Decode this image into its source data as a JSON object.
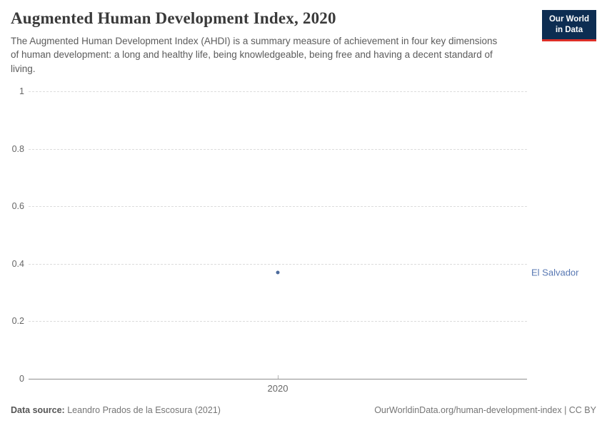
{
  "header": {
    "title": "Augmented Human Development Index, 2020",
    "subtitle": "The Augmented Human Development Index (AHDI) is a summary measure of achievement in four key dimensions of human development: a long and healthy life, being knowledgeable, being free and having a decent standard of living.",
    "logo": {
      "line1": "Our World",
      "line2": "in Data",
      "bg_color": "#0d2d52",
      "accent_color": "#dc2e27"
    }
  },
  "chart_data": {
    "type": "scatter",
    "title": "Augmented Human Development Index, 2020",
    "x": [
      2020
    ],
    "xticks": [
      "2020"
    ],
    "series": [
      {
        "name": "El Salvador",
        "values": [
          0.37
        ],
        "color": "#4C6A9C",
        "label_color": "#5878B3"
      }
    ],
    "ylim": [
      0,
      1
    ],
    "yticks": [
      0,
      0.2,
      0.4,
      0.6,
      0.8,
      1
    ],
    "grid": "horizontal-dashed",
    "legend": "entity-label-right"
  },
  "footer": {
    "source_label": "Data source:",
    "source_value": "Leandro Prados de la Escosura (2021)",
    "citation": "OurWorldinData.org/human-development-index | CC BY"
  }
}
